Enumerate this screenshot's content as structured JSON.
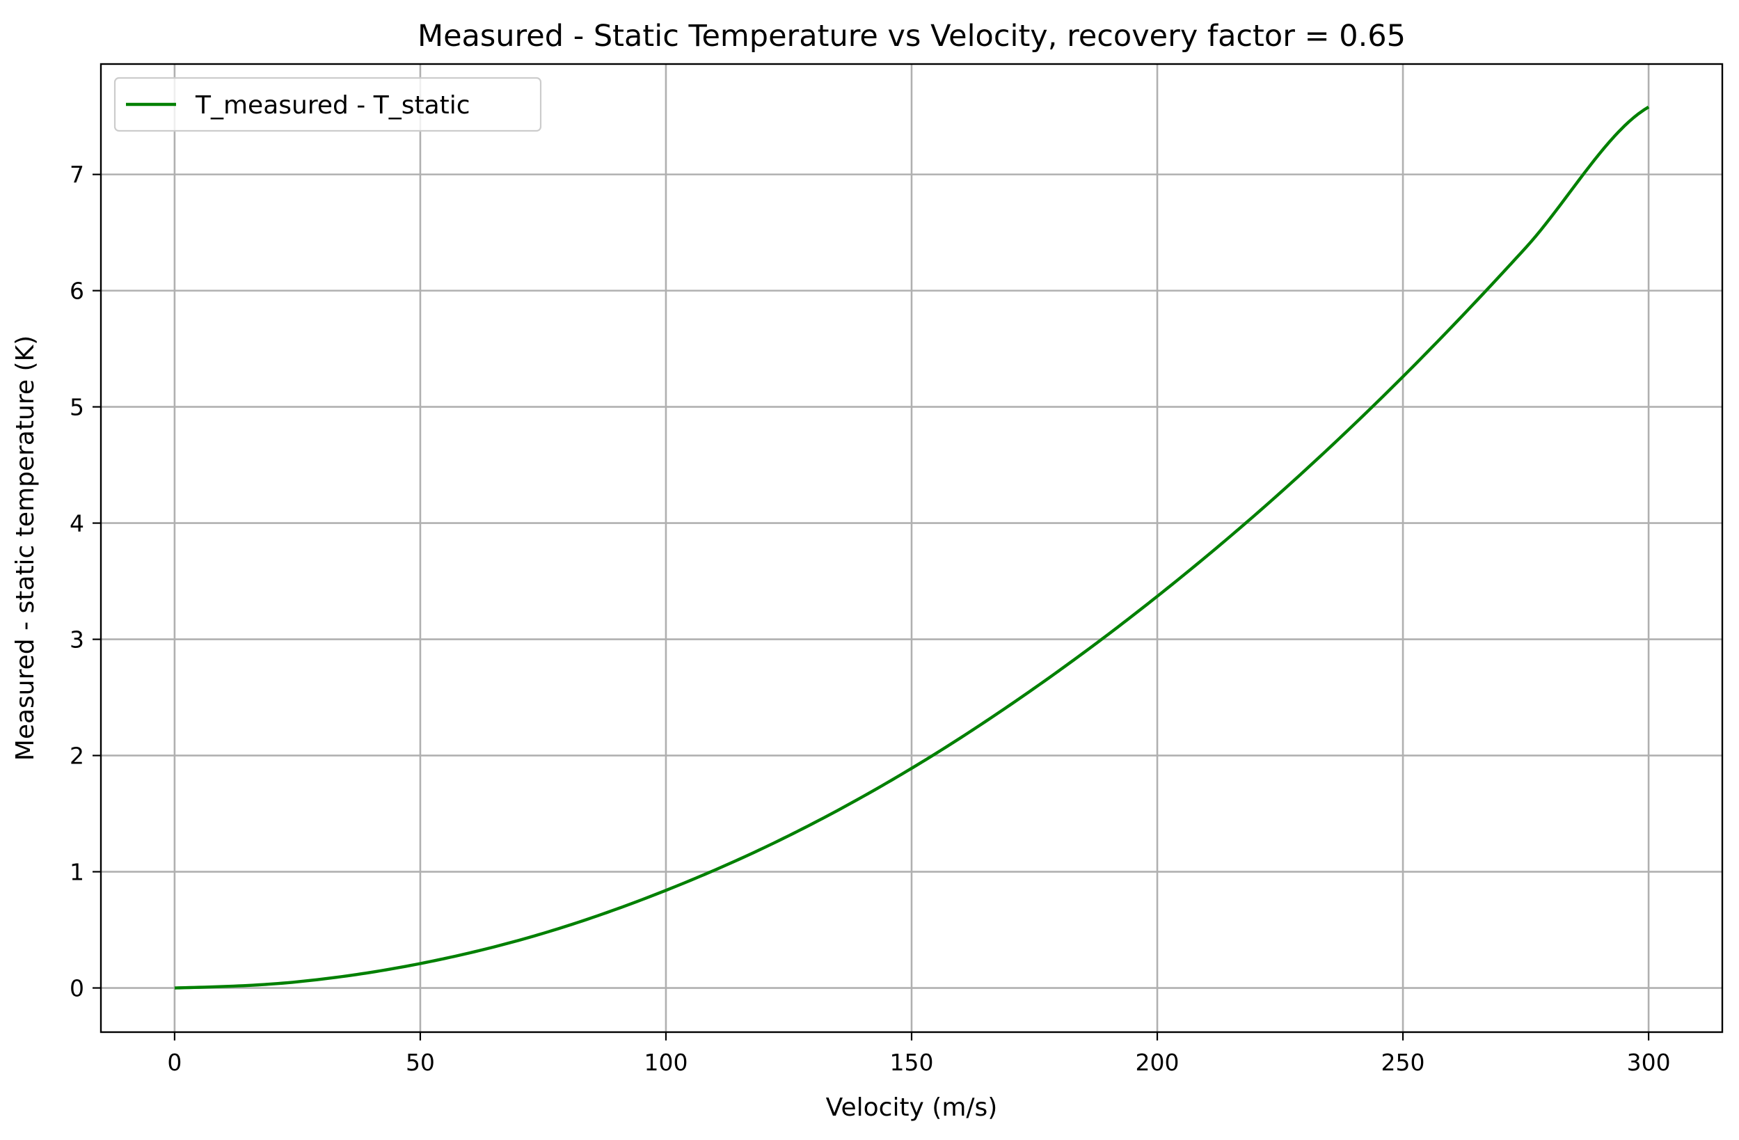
{
  "chart_data": {
    "type": "line",
    "title": "Measured - Static Temperature vs Velocity, recovery factor = 0.65",
    "xlabel": "Velocity (m/s)",
    "ylabel": "Measured - static temperature (K)",
    "xlim": [
      -15,
      315
    ],
    "ylim": [
      -0.38,
      7.95
    ],
    "x_ticks": [
      0,
      50,
      100,
      150,
      200,
      250,
      300
    ],
    "y_ticks": [
      0,
      1,
      2,
      3,
      4,
      5,
      6,
      7
    ],
    "grid": true,
    "legend_position": "top-left",
    "series": [
      {
        "name": "T_measured - T_static",
        "color": "#008000",
        "x": [
          0,
          25,
          50,
          75,
          100,
          125,
          150,
          175,
          200,
          225,
          250,
          275,
          300
        ],
        "y": [
          0,
          0.053,
          0.21,
          0.47,
          0.84,
          1.31,
          1.89,
          2.58,
          3.37,
          4.26,
          5.26,
          6.37,
          7.58
        ]
      }
    ]
  }
}
